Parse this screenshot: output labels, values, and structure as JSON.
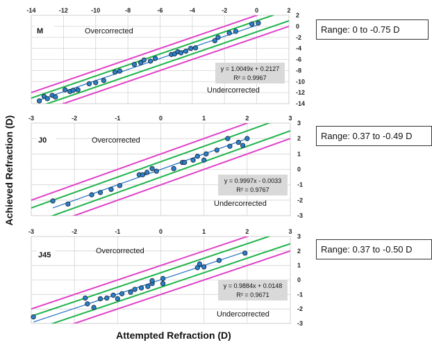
{
  "y_axis_label": "Achieved Refraction (D)",
  "x_axis_label": "Attempted Refraction (D)",
  "chart_data": [
    {
      "type": "scatter",
      "panel_label": "M",
      "xlim": [
        -14,
        2
      ],
      "ylim": [
        -14,
        2
      ],
      "x_ticks": [
        -14,
        -12,
        -10,
        -8,
        -6,
        -4,
        -2,
        0,
        2
      ],
      "y_ticks": [
        2,
        0,
        -2,
        -4,
        -6,
        -8,
        -10,
        -12,
        -14
      ],
      "x_tick_labels": [
        "-14",
        "-12",
        "-10",
        "-8",
        "-6",
        "-4",
        "-2",
        "0",
        "2"
      ],
      "y_tick_labels": [
        "2",
        "0",
        "-2",
        "-4",
        "-6",
        "-8",
        "-10",
        "-12",
        "-14"
      ],
      "grid": true,
      "overcorrected_label": "Overcorrected",
      "undercorrected_label": "Undercorrected",
      "equation": "y = 1.0049x + 0.2127",
      "r_squared": "R² = 0.9967",
      "slope": 1.0049,
      "intercept": 0.2127,
      "inner_band": 1,
      "outer_band": 2,
      "range_text": "Range: 0 to -0.75 D",
      "x": [
        -13.5,
        -13.2,
        -13.0,
        -12.7,
        -12.5,
        -11.9,
        -11.6,
        -11.4,
        -11.1,
        -10.4,
        -10.0,
        -9.5,
        -8.8,
        -8.5,
        -7.6,
        -7.2,
        -7.0,
        -6.6,
        -6.3,
        -5.3,
        -5.1,
        -4.9,
        -4.7,
        -4.4,
        -4.1,
        -3.8,
        -2.6,
        -2.4,
        -1.7,
        -1.3,
        -0.3,
        0.1
      ],
      "y": [
        -13.5,
        -12.7,
        -13.1,
        -12.5,
        -12.8,
        -11.5,
        -11.8,
        -11.6,
        -11.5,
        -10.4,
        -10.2,
        -9.8,
        -8.3,
        -8.1,
        -6.9,
        -6.6,
        -6.1,
        -6.3,
        -5.8,
        -5.1,
        -5.0,
        -4.6,
        -4.8,
        -4.5,
        -4.0,
        -3.9,
        -2.6,
        -2.0,
        -1.2,
        -0.9,
        0.4,
        0.6
      ]
    },
    {
      "type": "scatter",
      "panel_label": "J0",
      "xlim": [
        -3,
        3
      ],
      "ylim": [
        -3,
        3
      ],
      "x_ticks": [
        -3,
        -2,
        -1,
        0,
        1,
        2,
        3
      ],
      "y_ticks": [
        3,
        2,
        1,
        0,
        -1,
        -2,
        -3
      ],
      "x_tick_labels": [
        "-3",
        "-2",
        "-1",
        "0",
        "1",
        "2",
        "3"
      ],
      "y_tick_labels": [
        "3",
        "2",
        "1",
        "0",
        "-1",
        "-2",
        "-3"
      ],
      "grid": true,
      "overcorrected_label": "Overcorrected",
      "undercorrected_label": "Undercorrected",
      "equation": "y = 0.9997x - 0.0033",
      "r_squared": "R² = 0.9767",
      "slope": 0.9997,
      "intercept": -0.0033,
      "inner_band": 0.5,
      "outer_band": 1,
      "range_text": "Range: 0.37 to -0.49 D",
      "x": [
        -2.5,
        -2.15,
        -1.6,
        -1.4,
        -1.15,
        -0.95,
        -0.5,
        -0.42,
        -0.32,
        -0.2,
        -0.1,
        0.3,
        0.5,
        0.55,
        0.75,
        0.85,
        1.0,
        1.05,
        1.3,
        1.6,
        1.8,
        1.9,
        2.0,
        1.55
      ],
      "y": [
        -2.05,
        -2.25,
        -1.65,
        -1.5,
        -1.3,
        -1.05,
        -0.35,
        -0.35,
        -0.2,
        0.05,
        -0.12,
        0.05,
        0.45,
        0.45,
        0.6,
        0.85,
        0.6,
        1.0,
        1.25,
        1.5,
        1.75,
        1.55,
        2.0,
        2.0
      ]
    },
    {
      "type": "scatter",
      "panel_label": "J45",
      "xlim": [
        -3,
        3
      ],
      "ylim": [
        -3,
        3
      ],
      "x_ticks": [
        -3,
        -2,
        -1,
        0,
        1,
        2,
        3
      ],
      "y_ticks": [
        3,
        2,
        1,
        0,
        -1,
        -2,
        -3
      ],
      "x_tick_labels": [
        "-3",
        "-2",
        "-1",
        "0",
        "1",
        "2",
        "3"
      ],
      "y_tick_labels": [
        "3",
        "2",
        "1",
        "0",
        "-1",
        "-2",
        "-3"
      ],
      "grid": true,
      "overcorrected_label": "Overcorrected",
      "undercorrected_label": "Undercorrected",
      "equation": "y = 0.9884x + 0.0148",
      "r_squared": "R² = 0.9671",
      "slope": 0.9884,
      "intercept": 0.0148,
      "inner_band": 0.5,
      "outer_band": 1,
      "range_text": "Range: 0.37 to -0.50 D",
      "x": [
        -2.95,
        -1.75,
        -1.7,
        -1.55,
        -1.4,
        -1.25,
        -1.1,
        -1.0,
        -0.9,
        -0.7,
        -0.6,
        -0.45,
        -0.3,
        -0.2,
        -0.2,
        0.05,
        0.05,
        0.85,
        0.9,
        1.0,
        1.35,
        1.95
      ],
      "y": [
        -2.55,
        -1.25,
        -1.65,
        -1.9,
        -1.3,
        -1.25,
        -1.05,
        -1.3,
        -0.95,
        -0.85,
        -0.65,
        -0.55,
        -0.45,
        -0.25,
        -0.05,
        0.1,
        -0.25,
        0.85,
        1.1,
        0.9,
        1.35,
        1.85
      ]
    }
  ]
}
